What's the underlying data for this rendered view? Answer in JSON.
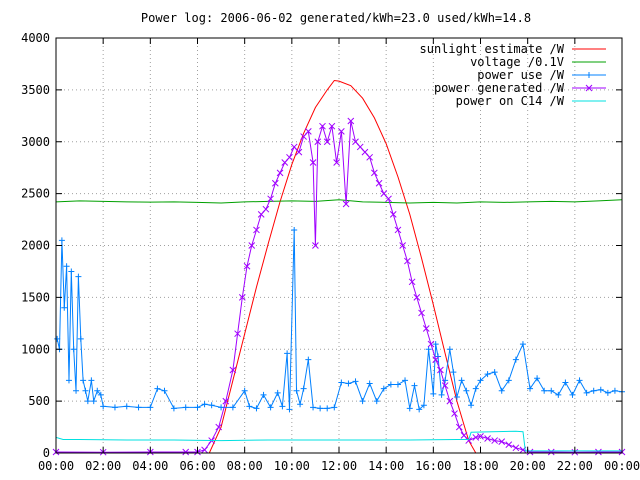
{
  "chart_data": {
    "type": "line",
    "title": "Power log: 2006-06-02 generated/kWh=23.0 used/kWh=14.8",
    "xlabel": "",
    "ylabel": "",
    "x_ticks": [
      "00:00",
      "02:00",
      "04:00",
      "06:00",
      "08:00",
      "10:00",
      "12:00",
      "14:00",
      "16:00",
      "18:00",
      "20:00",
      "22:00",
      "00:00"
    ],
    "y_ticks": [
      "0",
      "500",
      "1000",
      "1500",
      "2000",
      "2500",
      "3000",
      "3500",
      "4000"
    ],
    "xlim": [
      0,
      24
    ],
    "ylim": [
      0,
      4000
    ],
    "grid": true,
    "legend_position": "top-right",
    "series": [
      {
        "name": "sunlight estimate /W",
        "color": "#ff0000",
        "style": "line",
        "points": [
          [
            6.5,
            0
          ],
          [
            7,
            250
          ],
          [
            7.5,
            700
          ],
          [
            8,
            1150
          ],
          [
            8.5,
            1600
          ],
          [
            9,
            2020
          ],
          [
            9.5,
            2420
          ],
          [
            10,
            2780
          ],
          [
            10.5,
            3080
          ],
          [
            11,
            3330
          ],
          [
            11.5,
            3500
          ],
          [
            11.8,
            3590
          ],
          [
            12,
            3585
          ],
          [
            12.5,
            3540
          ],
          [
            13,
            3420
          ],
          [
            13.5,
            3230
          ],
          [
            14,
            2980
          ],
          [
            14.5,
            2660
          ],
          [
            15,
            2300
          ],
          [
            15.5,
            1880
          ],
          [
            16,
            1430
          ],
          [
            16.5,
            960
          ],
          [
            17,
            500
          ],
          [
            17.5,
            120
          ],
          [
            17.8,
            0
          ]
        ]
      },
      {
        "name": "voltage /0.1V",
        "color": "#00a000",
        "style": "line",
        "points": [
          [
            0,
            2420
          ],
          [
            1,
            2430
          ],
          [
            2,
            2425
          ],
          [
            3,
            2420
          ],
          [
            4,
            2418
          ],
          [
            5,
            2420
          ],
          [
            6,
            2415
          ],
          [
            7,
            2410
          ],
          [
            8,
            2420
          ],
          [
            9,
            2425
          ],
          [
            10,
            2430
          ],
          [
            11,
            2425
          ],
          [
            12,
            2440
          ],
          [
            13,
            2420
          ],
          [
            14,
            2415
          ],
          [
            15,
            2410
          ],
          [
            16,
            2415
          ],
          [
            17,
            2410
          ],
          [
            18,
            2420
          ],
          [
            19,
            2415
          ],
          [
            20,
            2420
          ],
          [
            21,
            2425
          ],
          [
            22,
            2420
          ],
          [
            23,
            2430
          ],
          [
            24,
            2440
          ]
        ]
      },
      {
        "name": "power use /W",
        "color": "#0080ff",
        "style": "linespoints",
        "points": [
          [
            0.05,
            1100
          ],
          [
            0.15,
            1000
          ],
          [
            0.25,
            2050
          ],
          [
            0.35,
            1400
          ],
          [
            0.45,
            1800
          ],
          [
            0.55,
            700
          ],
          [
            0.65,
            1750
          ],
          [
            0.75,
            1000
          ],
          [
            0.85,
            600
          ],
          [
            0.95,
            1700
          ],
          [
            1.05,
            1100
          ],
          [
            1.15,
            700
          ],
          [
            1.25,
            600
          ],
          [
            1.35,
            500
          ],
          [
            1.5,
            700
          ],
          [
            1.6,
            500
          ],
          [
            1.75,
            600
          ],
          [
            1.9,
            560
          ],
          [
            2.0,
            450
          ],
          [
            2.5,
            440
          ],
          [
            3.0,
            450
          ],
          [
            3.5,
            440
          ],
          [
            4.0,
            440
          ],
          [
            4.3,
            620
          ],
          [
            4.6,
            600
          ],
          [
            5.0,
            430
          ],
          [
            5.5,
            440
          ],
          [
            6.0,
            440
          ],
          [
            6.3,
            470
          ],
          [
            6.6,
            460
          ],
          [
            7.0,
            440
          ],
          [
            7.5,
            440
          ],
          [
            8.0,
            600
          ],
          [
            8.2,
            450
          ],
          [
            8.5,
            430
          ],
          [
            8.8,
            560
          ],
          [
            9.1,
            440
          ],
          [
            9.4,
            580
          ],
          [
            9.6,
            450
          ],
          [
            9.8,
            960
          ],
          [
            9.9,
            420
          ],
          [
            10.1,
            2150
          ],
          [
            10.2,
            600
          ],
          [
            10.35,
            470
          ],
          [
            10.5,
            620
          ],
          [
            10.7,
            900
          ],
          [
            10.9,
            440
          ],
          [
            11.2,
            430
          ],
          [
            11.5,
            430
          ],
          [
            11.8,
            440
          ],
          [
            12.1,
            680
          ],
          [
            12.4,
            670
          ],
          [
            12.7,
            690
          ],
          [
            13.0,
            500
          ],
          [
            13.3,
            670
          ],
          [
            13.6,
            500
          ],
          [
            13.9,
            620
          ],
          [
            14.2,
            660
          ],
          [
            14.5,
            660
          ],
          [
            14.8,
            700
          ],
          [
            15.0,
            430
          ],
          [
            15.2,
            650
          ],
          [
            15.4,
            420
          ],
          [
            15.6,
            460
          ],
          [
            15.8,
            1000
          ],
          [
            16.0,
            570
          ],
          [
            16.1,
            1050
          ],
          [
            16.2,
            930
          ],
          [
            16.35,
            560
          ],
          [
            16.5,
            700
          ],
          [
            16.7,
            1000
          ],
          [
            16.85,
            780
          ],
          [
            17.0,
            540
          ],
          [
            17.2,
            700
          ],
          [
            17.4,
            600
          ],
          [
            17.6,
            460
          ],
          [
            17.8,
            620
          ],
          [
            18.0,
            700
          ],
          [
            18.3,
            760
          ],
          [
            18.6,
            780
          ],
          [
            18.9,
            600
          ],
          [
            19.2,
            700
          ],
          [
            19.5,
            900
          ],
          [
            19.8,
            1050
          ],
          [
            20.1,
            620
          ],
          [
            20.4,
            720
          ],
          [
            20.7,
            600
          ],
          [
            21.0,
            600
          ],
          [
            21.3,
            560
          ],
          [
            21.6,
            680
          ],
          [
            21.9,
            560
          ],
          [
            22.2,
            700
          ],
          [
            22.5,
            580
          ],
          [
            22.8,
            600
          ],
          [
            23.1,
            610
          ],
          [
            23.4,
            580
          ],
          [
            23.7,
            600
          ],
          [
            24.0,
            590
          ]
        ]
      },
      {
        "name": "power generated /W",
        "color": "#a000ff",
        "style": "linespoints",
        "points": [
          [
            0,
            10
          ],
          [
            2,
            8
          ],
          [
            4,
            10
          ],
          [
            5.5,
            10
          ],
          [
            6.0,
            10
          ],
          [
            6.3,
            30
          ],
          [
            6.6,
            120
          ],
          [
            6.9,
            250
          ],
          [
            7.2,
            500
          ],
          [
            7.5,
            800
          ],
          [
            7.7,
            1150
          ],
          [
            7.9,
            1500
          ],
          [
            8.1,
            1800
          ],
          [
            8.3,
            2000
          ],
          [
            8.5,
            2150
          ],
          [
            8.7,
            2300
          ],
          [
            8.9,
            2350
          ],
          [
            9.1,
            2450
          ],
          [
            9.3,
            2600
          ],
          [
            9.5,
            2700
          ],
          [
            9.7,
            2800
          ],
          [
            9.9,
            2850
          ],
          [
            10.1,
            2950
          ],
          [
            10.3,
            2900
          ],
          [
            10.5,
            3050
          ],
          [
            10.7,
            3100
          ],
          [
            10.9,
            2800
          ],
          [
            11.0,
            2000
          ],
          [
            11.1,
            3000
          ],
          [
            11.3,
            3150
          ],
          [
            11.5,
            3000
          ],
          [
            11.7,
            3150
          ],
          [
            11.9,
            2800
          ],
          [
            12.1,
            3100
          ],
          [
            12.3,
            2400
          ],
          [
            12.5,
            3200
          ],
          [
            12.7,
            3000
          ],
          [
            12.9,
            2950
          ],
          [
            13.1,
            2900
          ],
          [
            13.3,
            2850
          ],
          [
            13.5,
            2700
          ],
          [
            13.7,
            2600
          ],
          [
            13.9,
            2500
          ],
          [
            14.1,
            2450
          ],
          [
            14.3,
            2300
          ],
          [
            14.5,
            2150
          ],
          [
            14.7,
            2000
          ],
          [
            14.9,
            1850
          ],
          [
            15.1,
            1650
          ],
          [
            15.3,
            1500
          ],
          [
            15.5,
            1350
          ],
          [
            15.7,
            1200
          ],
          [
            15.9,
            1050
          ],
          [
            16.1,
            900
          ],
          [
            16.3,
            800
          ],
          [
            16.5,
            650
          ],
          [
            16.7,
            500
          ],
          [
            16.9,
            380
          ],
          [
            17.1,
            250
          ],
          [
            17.3,
            170
          ],
          [
            17.5,
            120
          ],
          [
            17.8,
            150
          ],
          [
            18.0,
            160
          ],
          [
            18.3,
            140
          ],
          [
            18.6,
            120
          ],
          [
            18.9,
            110
          ],
          [
            19.2,
            80
          ],
          [
            19.5,
            50
          ],
          [
            19.8,
            30
          ],
          [
            20.1,
            10
          ],
          [
            21,
            10
          ],
          [
            22,
            8
          ],
          [
            23,
            10
          ],
          [
            24,
            10
          ]
        ]
      },
      {
        "name": "power on C14 /W",
        "color": "#00e0e0",
        "style": "line",
        "points": [
          [
            0,
            150
          ],
          [
            0.3,
            130
          ],
          [
            1,
            130
          ],
          [
            3,
            125
          ],
          [
            5,
            125
          ],
          [
            7,
            120
          ],
          [
            9,
            125
          ],
          [
            11,
            125
          ],
          [
            13,
            125
          ],
          [
            15,
            125
          ],
          [
            17,
            130
          ],
          [
            17.5,
            130
          ],
          [
            17.6,
            200
          ],
          [
            18.5,
            205
          ],
          [
            19.5,
            210
          ],
          [
            19.8,
            205
          ],
          [
            19.9,
            20
          ],
          [
            21,
            20
          ],
          [
            22,
            20
          ],
          [
            24,
            20
          ]
        ]
      }
    ]
  }
}
